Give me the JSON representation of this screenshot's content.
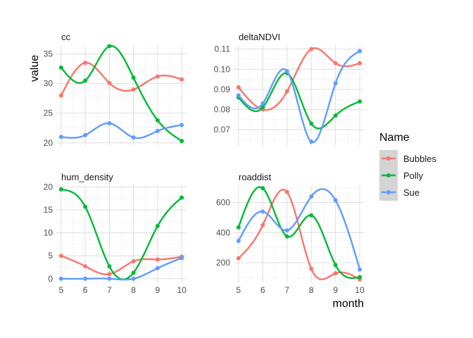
{
  "chart_data": {
    "type": "line",
    "xlabel": "month",
    "ylabel": "value",
    "x_ticks": [
      5,
      6,
      7,
      8,
      9,
      10
    ],
    "legend": {
      "title": "Name",
      "placement": "right",
      "entries": [
        {
          "name": "Bubbles",
          "color": "#F8766D"
        },
        {
          "name": "Polly",
          "color": "#00BA38"
        },
        {
          "name": "Sue",
          "color": "#619CFF"
        }
      ]
    },
    "panels": [
      {
        "title": "cc",
        "ylim": [
          19.5,
          36.5
        ],
        "yticks": [
          20,
          25,
          30,
          35
        ],
        "y_decimals": 0,
        "x": [
          5,
          6,
          7,
          8,
          9,
          10
        ],
        "series": [
          {
            "name": "Bubbles",
            "values": [
              28.0,
              33.5,
              30.1,
              29.0,
              31.2,
              30.7
            ]
          },
          {
            "name": "Polly",
            "values": [
              32.7,
              30.5,
              36.3,
              31.0,
              23.8,
              20.3
            ]
          },
          {
            "name": "Sue",
            "values": [
              21.0,
              21.3,
              23.3,
              20.9,
              22.0,
              23.0
            ]
          }
        ]
      },
      {
        "title": "deltaNDVI",
        "ylim": [
          0.062,
          0.112
        ],
        "yticks": [
          0.07,
          0.08,
          0.09,
          0.1,
          0.11
        ],
        "y_decimals": 2,
        "x": [
          5,
          6,
          7,
          8,
          9,
          10
        ],
        "series": [
          {
            "name": "Bubbles",
            "values": [
              0.091,
              0.08,
              0.089,
              0.11,
              0.103,
              0.103
            ]
          },
          {
            "name": "Polly",
            "values": [
              0.086,
              0.081,
              0.098,
              0.073,
              0.077,
              0.084
            ]
          },
          {
            "name": "Sue",
            "values": [
              0.087,
              0.083,
              0.099,
              0.064,
              0.093,
              0.109
            ]
          }
        ]
      },
      {
        "title": "hum_density",
        "ylim": [
          -0.8,
          20.4
        ],
        "yticks": [
          0,
          5,
          10,
          15,
          20
        ],
        "y_decimals": 0,
        "x": [
          5,
          6,
          7,
          8,
          9,
          10
        ],
        "series": [
          {
            "name": "Bubbles",
            "values": [
              5.0,
              2.7,
              1.0,
              3.8,
              4.2,
              4.8
            ]
          },
          {
            "name": "Polly",
            "values": [
              19.5,
              15.7,
              2.7,
              1.3,
              11.5,
              17.7
            ]
          },
          {
            "name": "Sue",
            "values": [
              0.0,
              0.0,
              0.0,
              0.0,
              2.3,
              4.5
            ]
          }
        ]
      },
      {
        "title": "roaddist",
        "ylim": [
          70,
          715
        ],
        "yticks": [
          200,
          400,
          600
        ],
        "y_decimals": 0,
        "x": [
          5,
          6,
          7,
          8,
          9,
          10
        ],
        "series": [
          {
            "name": "Bubbles",
            "values": [
              230,
              450,
              670,
              160,
              130,
              90
            ]
          },
          {
            "name": "Polly",
            "values": [
              435,
              695,
              375,
              515,
              185,
              105
            ]
          },
          {
            "name": "Sue",
            "values": [
              345,
              540,
              415,
              640,
              615,
              155
            ]
          }
        ]
      }
    ]
  }
}
